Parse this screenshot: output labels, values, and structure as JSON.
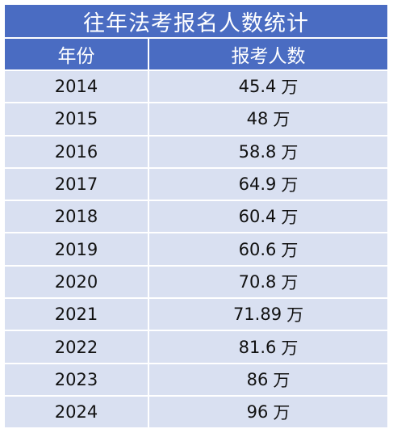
{
  "title": "往年法考报名人数统计",
  "headers": {
    "year": "年份",
    "count": "报考人数"
  },
  "rows": [
    {
      "year": "2014",
      "value": "45.4",
      "unit": "万"
    },
    {
      "year": "2015",
      "value": "48",
      "unit": "万"
    },
    {
      "year": "2016",
      "value": "58.8",
      "unit": "万"
    },
    {
      "year": "2017",
      "value": "64.9",
      "unit": "万"
    },
    {
      "year": "2018",
      "value": "60.4",
      "unit": "万"
    },
    {
      "year": "2019",
      "value": "60.6",
      "unit": "万"
    },
    {
      "year": "2020",
      "value": "70.8",
      "unit": "万"
    },
    {
      "year": "2021",
      "value": "71.89",
      "unit": "万"
    },
    {
      "year": "2022",
      "value": "81.6",
      "unit": "万"
    },
    {
      "year": "2023",
      "value": "86",
      "unit": "万"
    },
    {
      "year": "2024",
      "value": "96",
      "unit": "万"
    }
  ],
  "colors": {
    "header_bg": "#4a6cc2",
    "row_bg": "#d9e0f1",
    "header_text": "#ffffff",
    "body_text": "#111111"
  },
  "chart_data": {
    "type": "table",
    "title": "往年法考报名人数统计",
    "columns": [
      "年份",
      "报考人数"
    ],
    "categories": [
      "2014",
      "2015",
      "2016",
      "2017",
      "2018",
      "2019",
      "2020",
      "2021",
      "2022",
      "2023",
      "2024"
    ],
    "values": [
      45.4,
      48,
      58.8,
      64.9,
      60.4,
      60.6,
      70.8,
      71.89,
      81.6,
      86,
      96
    ],
    "unit": "万"
  }
}
